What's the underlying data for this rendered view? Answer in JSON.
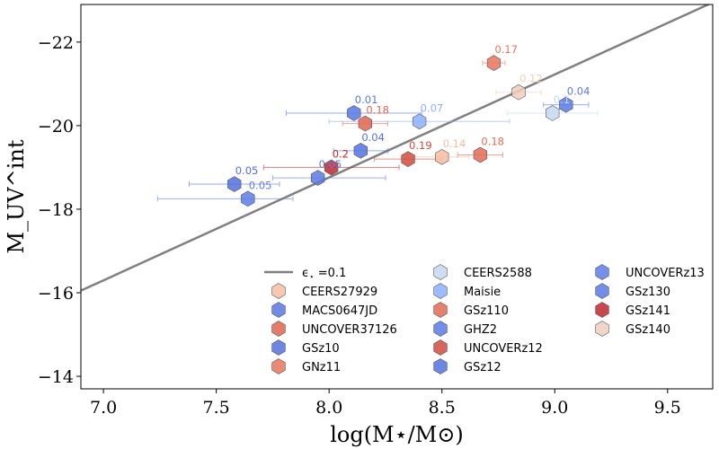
{
  "chart_data": {
    "type": "scatter",
    "xlabel": "log(M⋆/M⊙)",
    "ylabel": "M_UV^int",
    "xlim": [
      6.9,
      9.7
    ],
    "ylim": [
      -13.7,
      -22.9
    ],
    "xticks": [
      7.0,
      7.5,
      8.0,
      8.5,
      9.0,
      9.5
    ],
    "xtick_labels": [
      "7.0",
      "7.5",
      "8.0",
      "8.5",
      "9.0",
      "9.5"
    ],
    "yticks": [
      -22,
      -20,
      -18,
      -16,
      -14
    ],
    "ytick_labels": [
      "−22",
      "−20",
      "−18",
      "−16",
      "−14"
    ],
    "line": {
      "label_symbol": "ϵ",
      "label_sub": "⋆",
      "label_rest": " =0.1",
      "x": [
        6.9,
        9.7
      ],
      "y": [
        -16.05,
        -22.95
      ],
      "color": "#808080"
    },
    "series": [
      {
        "name": "CEERS27929",
        "x": 8.5,
        "y": -19.25,
        "xerr": [
          0.12,
          0.12
        ],
        "eps": "0.14",
        "color": "#f6bda2"
      },
      {
        "name": "MACS0647JD",
        "x": 8.11,
        "y": -20.3,
        "xerr": [
          0.3,
          0.3
        ],
        "eps": "0.01",
        "color": "#5977e3"
      },
      {
        "name": "UNCOVER37126",
        "x": 8.16,
        "y": -20.05,
        "xerr": [
          0.1,
          0.1
        ],
        "eps": "0.18",
        "color": "#e0654f"
      },
      {
        "name": "GSz10",
        "x": 7.58,
        "y": -18.6,
        "xerr": [
          0.2,
          0.2
        ],
        "eps": "0.05",
        "color": "#5470de"
      },
      {
        "name": "GNz11",
        "x": 8.73,
        "y": -21.5,
        "xerr": [
          0.05,
          0.05
        ],
        "eps": "0.17",
        "color": "#e8765c"
      },
      {
        "name": "CEERS2588",
        "x": 8.99,
        "y": -20.3,
        "xerr": [
          0.2,
          0.2
        ],
        "eps": "0.1",
        "color": "#c5d6f2"
      },
      {
        "name": "Maisie",
        "x": 8.4,
        "y": -20.1,
        "xerr": [
          0.4,
          0.4
        ],
        "eps": "0.07",
        "color": "#8caffe"
      },
      {
        "name": "GSz110",
        "x": 8.67,
        "y": -19.3,
        "xerr": [
          0.1,
          0.1
        ],
        "eps": "0.18",
        "color": "#e36b54"
      },
      {
        "name": "GHZ2",
        "x": 7.95,
        "y": -18.75,
        "xerr": [
          0.2,
          0.3
        ],
        "eps": "0.05",
        "color": "#5b7ae5"
      },
      {
        "name": "UNCOVERz12",
        "x": 8.35,
        "y": -19.2,
        "xerr": [
          0.15,
          0.15
        ],
        "eps": "0.19",
        "color": "#d24b40"
      },
      {
        "name": "GSz12",
        "x": 8.14,
        "y": -19.4,
        "xerr": [
          0.12,
          0.12
        ],
        "eps": "0.04",
        "color": "#5572df"
      },
      {
        "name": "UNCOVERz13",
        "x": 7.64,
        "y": -18.25,
        "xerr": [
          0.4,
          0.2
        ],
        "eps": "0.05",
        "color": "#5d7ce6"
      },
      {
        "name": "GSz130",
        "x": 9.05,
        "y": -20.5,
        "xerr": [
          0.1,
          0.1
        ],
        "eps": "0.04",
        "color": "#5b7ae5"
      },
      {
        "name": "GSz141",
        "x": 8.01,
        "y": -19.0,
        "xerr": [
          0.3,
          0.3
        ],
        "eps": "0.2",
        "color": "#c0282f"
      },
      {
        "name": "GSz140",
        "x": 8.84,
        "y": -20.8,
        "xerr": [
          0.1,
          0.1
        ],
        "eps": "0.12",
        "color": "#efcebd"
      }
    ]
  }
}
